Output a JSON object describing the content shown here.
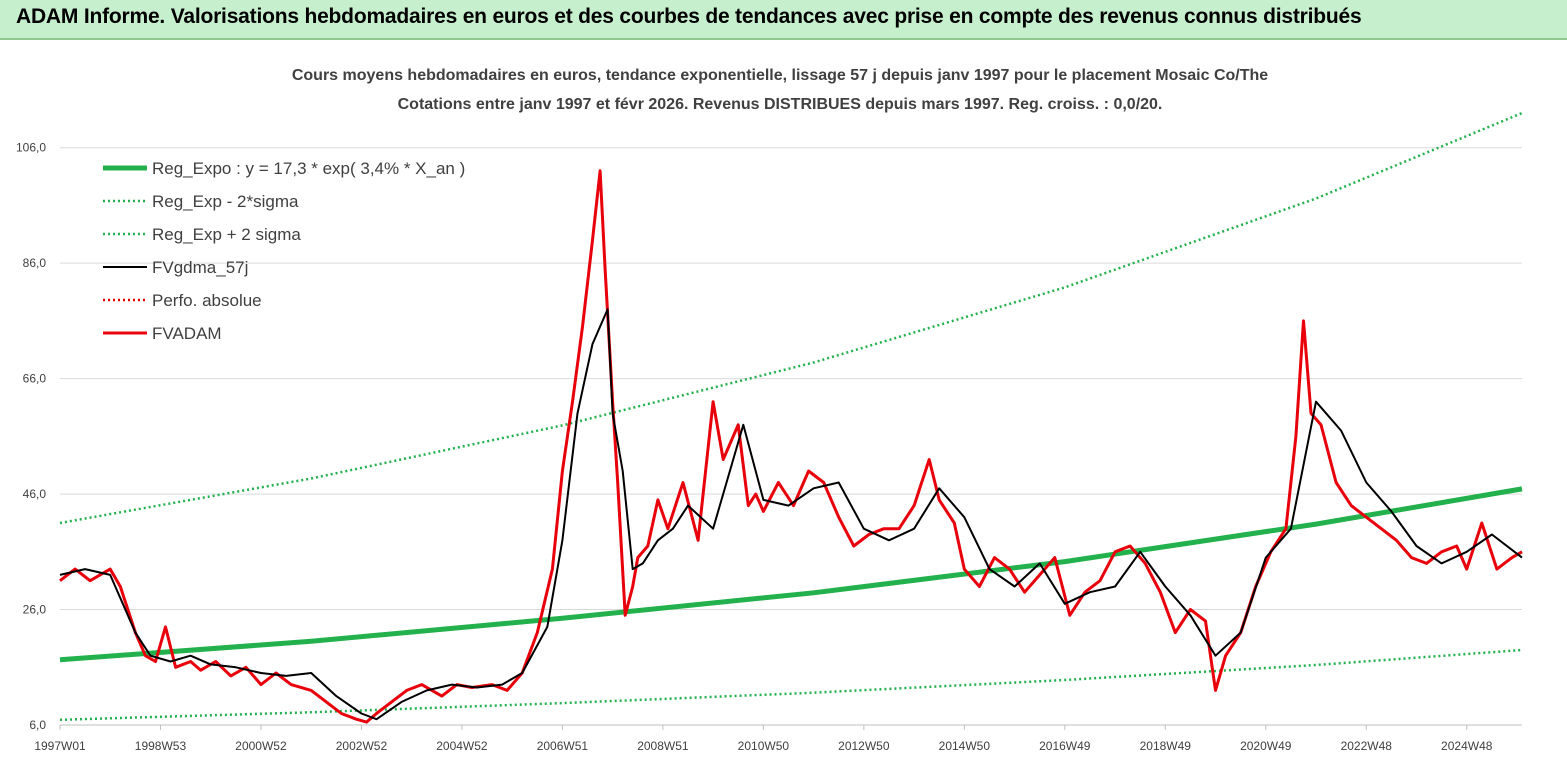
{
  "header": {
    "title": "ADAM Informe. Valorisations hebdomadaires en euros et des courbes de tendances avec prise en compte des revenus connus distribués"
  },
  "chart_data": {
    "type": "line",
    "title_line1": "Cours moyens hebdomadaires en euros, tendance exponentielle, lissage 57 j depuis janv 1997 pour le placement Mosaic Co/The",
    "title_line2": "Cotations entre janv 1997 et févr 2026. Revenus DISTRIBUES depuis mars 1997. Reg. croiss. : 0,0/20.",
    "x_tick_labels": [
      "1997W01",
      "1998W53",
      "2000W52",
      "2002W52",
      "2004W52",
      "2006W51",
      "2008W51",
      "2010W50",
      "2012W50",
      "2014W50",
      "2016W49",
      "2018W49",
      "2020W49",
      "2022W48",
      "2024W48"
    ],
    "y_tick_labels": [
      "6,0",
      "26,0",
      "46,0",
      "66,0",
      "86,0",
      "106,0"
    ],
    "ylim": [
      6,
      116
    ],
    "x_range_years": [
      1997.0,
      2026.1
    ],
    "grid": "horizontal",
    "legend_position": "top-left",
    "series": [
      {
        "name": "Reg_Expo : y = 17,3 * exp( 3,4% *  X_an )",
        "color": "#22b14c",
        "style": "solid-thick",
        "x": [
          1997.0,
          2002.0,
          2007.0,
          2012.0,
          2017.0,
          2022.0,
          2026.1
        ],
        "values": [
          17.3,
          20.5,
          24.5,
          28.9,
          34.3,
          40.8,
          46.9
        ]
      },
      {
        "name": "Reg_Exp - 2*sigma",
        "color": "#22b14c",
        "style": "dotted",
        "x": [
          1997.0,
          2002.0,
          2007.0,
          2012.0,
          2017.0,
          2022.0,
          2026.1
        ],
        "values": [
          6.9,
          8.2,
          9.8,
          11.6,
          13.8,
          16.4,
          19.0
        ]
      },
      {
        "name": "Reg_Exp + 2 sigma",
        "color": "#22b14c",
        "style": "dotted",
        "x": [
          1997.0,
          2002.0,
          2007.0,
          2012.0,
          2017.0,
          2022.0,
          2026.1
        ],
        "values": [
          41.0,
          48.7,
          57.9,
          68.8,
          81.8,
          97.2,
          112.0
        ]
      },
      {
        "name": "FVgdma_57j",
        "color": "#000000",
        "style": "solid",
        "x": [
          1997.0,
          1997.5,
          1998.0,
          1998.5,
          1998.8,
          1999.2,
          1999.6,
          2000.0,
          2000.5,
          2001.0,
          2001.5,
          2002.0,
          2002.5,
          2003.0,
          2003.3,
          2003.8,
          2004.3,
          2004.8,
          2005.3,
          2005.8,
          2006.2,
          2006.7,
          2007.0,
          2007.3,
          2007.6,
          2007.9,
          2008.0,
          2008.2,
          2008.4,
          2008.6,
          2008.9,
          2009.2,
          2009.5,
          2010.0,
          2010.6,
          2011.0,
          2011.5,
          2012.0,
          2012.5,
          2013.0,
          2013.5,
          2014.0,
          2014.5,
          2015.0,
          2015.5,
          2016.0,
          2016.5,
          2017.0,
          2017.5,
          2018.0,
          2018.5,
          2019.0,
          2019.5,
          2020.0,
          2020.5,
          2021.0,
          2021.5,
          2022.0,
          2022.5,
          2023.0,
          2023.5,
          2024.0,
          2024.5,
          2025.0,
          2025.5,
          2026.1
        ],
        "values": [
          32,
          33,
          32,
          22,
          18,
          17,
          18,
          16.5,
          16,
          15,
          14.5,
          15,
          11,
          8,
          7,
          10,
          12,
          13,
          12.5,
          13,
          15,
          23,
          38,
          60,
          72,
          78,
          60,
          50,
          33,
          34,
          38,
          40,
          44,
          40,
          58,
          45,
          44,
          47,
          48,
          40,
          38,
          40,
          47,
          42,
          33,
          30,
          34,
          27,
          29,
          30,
          36,
          30,
          25,
          18,
          22,
          35,
          40,
          62,
          57,
          48,
          43,
          37,
          34,
          36,
          39,
          35
        ]
      },
      {
        "name": "Perfo. absolue",
        "color": "#e00000",
        "style": "dotted",
        "x": [],
        "values": []
      },
      {
        "name": "FVADAM",
        "color": "#e8000b",
        "style": "solid-thick",
        "x": [
          1997.0,
          1997.3,
          1997.6,
          1998.0,
          1998.2,
          1998.5,
          1998.7,
          1998.9,
          1999.1,
          1999.3,
          1999.6,
          1999.8,
          2000.1,
          2000.4,
          2000.7,
          2001.0,
          2001.3,
          2001.6,
          2002.0,
          2002.3,
          2002.6,
          2002.9,
          2003.1,
          2003.3,
          2003.6,
          2003.9,
          2004.2,
          2004.6,
          2004.9,
          2005.2,
          2005.6,
          2005.9,
          2006.2,
          2006.5,
          2006.8,
          2007.0,
          2007.2,
          2007.4,
          2007.6,
          2007.75,
          2007.85,
          2008.0,
          2008.1,
          2008.25,
          2008.4,
          2008.5,
          2008.7,
          2008.9,
          2009.1,
          2009.4,
          2009.7,
          2010.0,
          2010.2,
          2010.5,
          2010.7,
          2010.85,
          2011.0,
          2011.3,
          2011.6,
          2011.9,
          2012.2,
          2012.5,
          2012.8,
          2013.1,
          2013.4,
          2013.7,
          2014.0,
          2014.3,
          2014.5,
          2014.8,
          2015.0,
          2015.3,
          2015.6,
          2015.9,
          2016.2,
          2016.5,
          2016.8,
          2017.1,
          2017.4,
          2017.7,
          2018.0,
          2018.3,
          2018.6,
          2018.9,
          2019.2,
          2019.5,
          2019.8,
          2020.0,
          2020.2,
          2020.5,
          2020.8,
          2021.1,
          2021.4,
          2021.6,
          2021.75,
          2021.9,
          2022.1,
          2022.4,
          2022.7,
          2023.0,
          2023.3,
          2023.6,
          2023.9,
          2024.2,
          2024.5,
          2024.8,
          2025.0,
          2025.3,
          2025.6,
          2025.9,
          2026.1
        ],
        "values": [
          31,
          33,
          31,
          33,
          30,
          22,
          18,
          17,
          23,
          16,
          17,
          15.5,
          17,
          14.5,
          16,
          13,
          15,
          13,
          12,
          10,
          8,
          7,
          6.5,
          8,
          10,
          12,
          13,
          11,
          13,
          12.5,
          13,
          12,
          15,
          22,
          33,
          50,
          62,
          75,
          90,
          102,
          85,
          62,
          48,
          25,
          30,
          35,
          37,
          45,
          40,
          48,
          38,
          62,
          52,
          58,
          44,
          46,
          43,
          48,
          44,
          50,
          48,
          42,
          37,
          39,
          40,
          40,
          44,
          52,
          45,
          41,
          33,
          30,
          35,
          33,
          29,
          32,
          35,
          25,
          29,
          31,
          36,
          37,
          34,
          29,
          22,
          26,
          24,
          12,
          18,
          22,
          30,
          36,
          40,
          56,
          76,
          60,
          58,
          48,
          44,
          42,
          40,
          38,
          35,
          34,
          36,
          37,
          33,
          41,
          33,
          35,
          36
        ]
      }
    ]
  }
}
